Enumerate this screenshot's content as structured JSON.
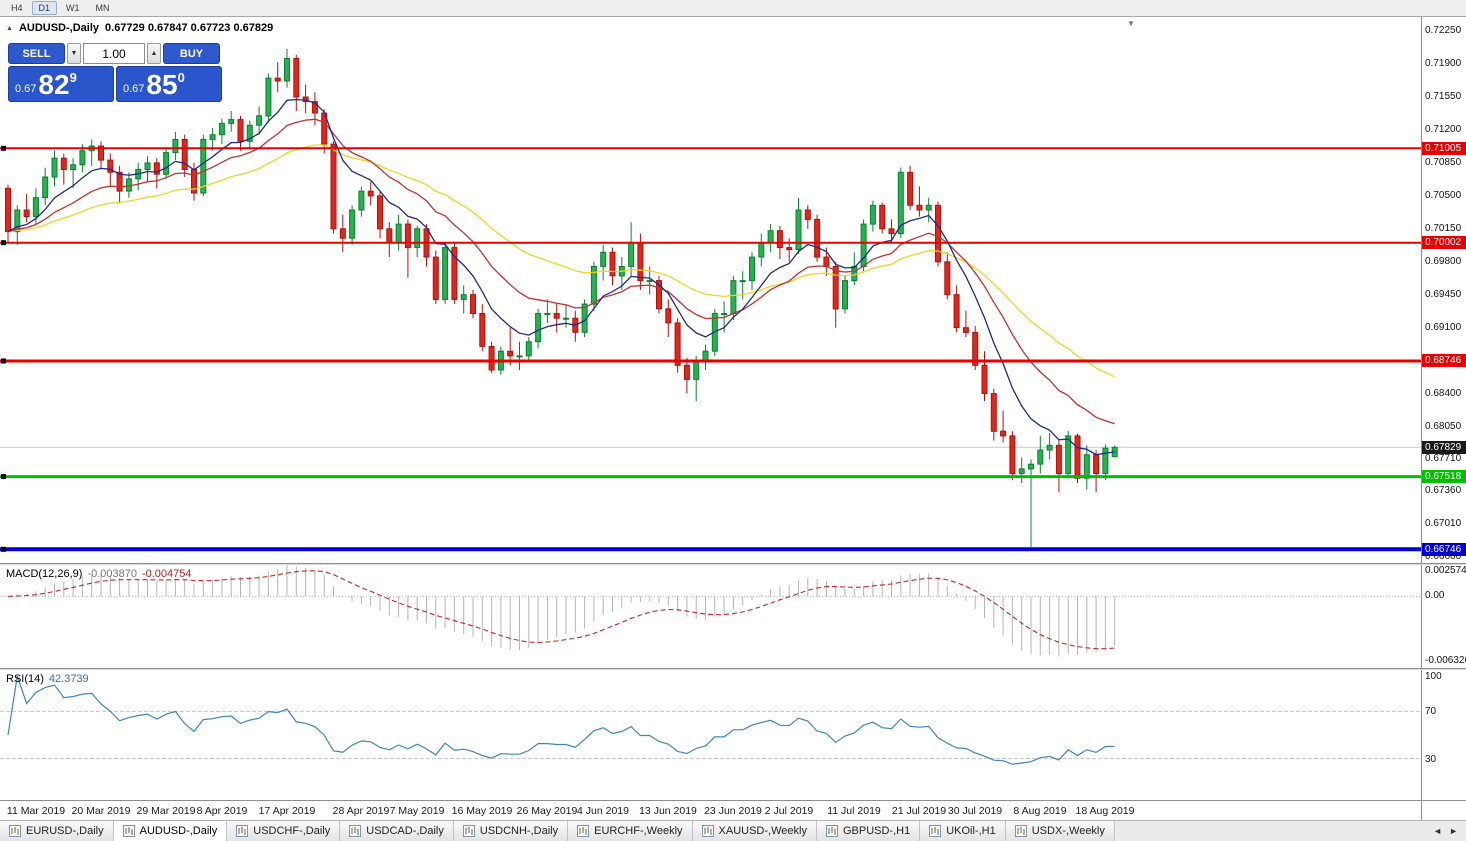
{
  "toolbar": {
    "periods": [
      {
        "label": "H4",
        "active": false
      },
      {
        "label": "D1",
        "active": true
      },
      {
        "label": "W1",
        "active": false
      },
      {
        "label": "MN",
        "active": false
      }
    ]
  },
  "icons": {
    "collapse": "▲",
    "volume_down": "▼",
    "volume_up": "▲",
    "shift_marker": "▼",
    "tab_scroll_left": "◄",
    "tab_scroll_right": "►"
  },
  "chart": {
    "symbol_label": "AUDUSD-,Daily",
    "ohlc": "0.67729 0.67847 0.67723 0.67829",
    "trade_panel": {
      "sell_label": "SELL",
      "buy_label": "BUY",
      "volume": "1.00",
      "sell_price": {
        "base": "0.67",
        "big": "82",
        "pip": "9"
      },
      "buy_price": {
        "base": "0.67",
        "big": "85",
        "pip": "0"
      }
    }
  },
  "chart_data": {
    "type": "candlestick",
    "symbol": "AUDUSD",
    "timeframe": "Daily",
    "title": "AUDUSD-,Daily",
    "current": {
      "open": 0.67729,
      "high": 0.67847,
      "low": 0.67723,
      "close": 0.67829
    },
    "current_price_label": "0.67829",
    "price_range": [
      0.666,
      0.724
    ],
    "y_axis_labels": [
      "0.72250",
      "0.71900",
      "0.71550",
      "0.71200",
      "0.70850",
      "0.70500",
      "0.70150",
      "0.69800",
      "0.69450",
      "0.69100",
      "0.68750",
      "0.68400",
      "0.68050",
      "0.67710",
      "0.67360",
      "0.67010",
      "0.66660"
    ],
    "x_axis_labels": [
      {
        "text": "11 Mar 2019",
        "index": 3
      },
      {
        "text": "20 Mar 2019",
        "index": 10
      },
      {
        "text": "29 Mar 2019",
        "index": 17
      },
      {
        "text": "8 Apr 2019",
        "index": 23
      },
      {
        "text": "17 Apr 2019",
        "index": 30
      },
      {
        "text": "28 Apr 2019",
        "index": 38
      },
      {
        "text": "7 May 2019",
        "index": 44
      },
      {
        "text": "16 May 2019",
        "index": 51
      },
      {
        "text": "26 May 2019",
        "index": 58
      },
      {
        "text": "4 Jun 2019",
        "index": 64
      },
      {
        "text": "13 Jun 2019",
        "index": 71
      },
      {
        "text": "23 Jun 2019",
        "index": 78
      },
      {
        "text": "2 Jul 2019",
        "index": 84
      },
      {
        "text": "11 Jul 2019",
        "index": 91
      },
      {
        "text": "21 Jul 2019",
        "index": 98
      },
      {
        "text": "30 Jul 2019",
        "index": 104
      },
      {
        "text": "8 Aug 2019",
        "index": 111
      },
      {
        "text": "18 Aug 2019",
        "index": 118
      }
    ],
    "hlines": [
      {
        "price": 0.71005,
        "label": "0.71005",
        "color": "#e60000",
        "width": 2,
        "role": "resistance"
      },
      {
        "price": 0.70002,
        "label": "0.70002",
        "color": "#e60000",
        "width": 2,
        "role": "resistance"
      },
      {
        "price": 0.68746,
        "label": "0.68746",
        "color": "#e60000",
        "width": 3,
        "role": "resistance"
      },
      {
        "price": 0.67518,
        "label": "0.67518",
        "color": "#00c000",
        "width": 3,
        "role": "support"
      },
      {
        "price": 0.66746,
        "label": "0.66746",
        "color": "#0000cc",
        "width": 4,
        "role": "support"
      }
    ],
    "colors": {
      "bull": "#27b24f",
      "bull_edge": "#0d7f33",
      "bear": "#e2261d",
      "bear_edge": "#a8140e",
      "current_line": "#c9c9c9",
      "current_tag": "#1a1a1a"
    },
    "moving_averages": [
      {
        "name": "slow",
        "period": 34,
        "color": "#efd429"
      },
      {
        "name": "medium",
        "period": 17,
        "color": "#c23030"
      },
      {
        "name": "fast",
        "period": 8,
        "color": "#1c2a8f"
      }
    ],
    "candles": [
      [
        0.7058,
        0.7062,
        0.7,
        0.7012
      ],
      [
        0.7012,
        0.704,
        0.6998,
        0.7035
      ],
      [
        0.7035,
        0.7052,
        0.7022,
        0.7028
      ],
      [
        0.7028,
        0.7058,
        0.702,
        0.7048
      ],
      [
        0.7048,
        0.708,
        0.704,
        0.707
      ],
      [
        0.707,
        0.7098,
        0.706,
        0.709
      ],
      [
        0.709,
        0.7095,
        0.7062,
        0.7078
      ],
      [
        0.7078,
        0.709,
        0.7058,
        0.7083
      ],
      [
        0.7083,
        0.7105,
        0.7075,
        0.7098
      ],
      [
        0.7098,
        0.711,
        0.7082,
        0.7103
      ],
      [
        0.7103,
        0.7108,
        0.7078,
        0.7088
      ],
      [
        0.7088,
        0.7095,
        0.706,
        0.7075
      ],
      [
        0.7075,
        0.7082,
        0.7042,
        0.7055
      ],
      [
        0.7055,
        0.7075,
        0.7048,
        0.7068
      ],
      [
        0.7068,
        0.7085,
        0.7056,
        0.7078
      ],
      [
        0.7078,
        0.7092,
        0.7065,
        0.7085
      ],
      [
        0.7085,
        0.709,
        0.7058,
        0.7073
      ],
      [
        0.7073,
        0.7102,
        0.7068,
        0.7096
      ],
      [
        0.7096,
        0.7118,
        0.7088,
        0.711
      ],
      [
        0.711,
        0.7115,
        0.707,
        0.7078
      ],
      [
        0.7078,
        0.7085,
        0.7045,
        0.7053
      ],
      [
        0.7053,
        0.7115,
        0.705,
        0.711
      ],
      [
        0.711,
        0.7122,
        0.7098,
        0.7115
      ],
      [
        0.7115,
        0.7132,
        0.7105,
        0.7127
      ],
      [
        0.7127,
        0.714,
        0.7118,
        0.7131
      ],
      [
        0.7131,
        0.7135,
        0.7098,
        0.7108
      ],
      [
        0.7108,
        0.713,
        0.71,
        0.7125
      ],
      [
        0.7125,
        0.7145,
        0.7115,
        0.7135
      ],
      [
        0.7135,
        0.718,
        0.7128,
        0.7175
      ],
      [
        0.7175,
        0.7192,
        0.716,
        0.7172
      ],
      [
        0.7172,
        0.7206,
        0.7165,
        0.7196
      ],
      [
        0.7196,
        0.72,
        0.714,
        0.7155
      ],
      [
        0.7155,
        0.7168,
        0.7138,
        0.715
      ],
      [
        0.715,
        0.716,
        0.7125,
        0.7138
      ],
      [
        0.7138,
        0.7142,
        0.7095,
        0.7105
      ],
      [
        0.7105,
        0.7108,
        0.701,
        0.7015
      ],
      [
        0.7015,
        0.703,
        0.699,
        0.7005
      ],
      [
        0.7005,
        0.704,
        0.6998,
        0.7035
      ],
      [
        0.7035,
        0.706,
        0.7028,
        0.7055
      ],
      [
        0.7055,
        0.7065,
        0.704,
        0.705
      ],
      [
        0.705,
        0.7055,
        0.7005,
        0.7015
      ],
      [
        0.7015,
        0.7022,
        0.6985,
        0.7
      ],
      [
        0.7,
        0.703,
        0.6992,
        0.702
      ],
      [
        0.702,
        0.7025,
        0.6963,
        0.6995
      ],
      [
        0.6995,
        0.7018,
        0.6985,
        0.7015
      ],
      [
        0.7015,
        0.702,
        0.6975,
        0.6985
      ],
      [
        0.6985,
        0.6992,
        0.6935,
        0.694
      ],
      [
        0.694,
        0.7,
        0.6935,
        0.6995
      ],
      [
        0.6995,
        0.7,
        0.6935,
        0.694
      ],
      [
        0.694,
        0.6955,
        0.6925,
        0.6945
      ],
      [
        0.6945,
        0.695,
        0.692,
        0.6925
      ],
      [
        0.6925,
        0.6935,
        0.6885,
        0.689
      ],
      [
        0.689,
        0.6895,
        0.6862,
        0.6865
      ],
      [
        0.6865,
        0.689,
        0.686,
        0.6885
      ],
      [
        0.6885,
        0.691,
        0.687,
        0.688
      ],
      [
        0.688,
        0.6895,
        0.6865,
        0.688
      ],
      [
        0.688,
        0.69,
        0.6875,
        0.6895
      ],
      [
        0.6895,
        0.693,
        0.6888,
        0.6925
      ],
      [
        0.6925,
        0.694,
        0.6915,
        0.6925
      ],
      [
        0.6925,
        0.6935,
        0.6905,
        0.692
      ],
      [
        0.692,
        0.6935,
        0.691,
        0.692
      ],
      [
        0.692,
        0.6928,
        0.6895,
        0.6905
      ],
      [
        0.6905,
        0.694,
        0.69,
        0.6935
      ],
      [
        0.6935,
        0.698,
        0.6928,
        0.6975
      ],
      [
        0.6975,
        0.6998,
        0.696,
        0.699
      ],
      [
        0.699,
        0.6995,
        0.6955,
        0.6965
      ],
      [
        0.6965,
        0.6985,
        0.695,
        0.6975
      ],
      [
        0.6975,
        0.7022,
        0.6965,
        0.7
      ],
      [
        0.7,
        0.701,
        0.695,
        0.696
      ],
      [
        0.696,
        0.6975,
        0.6945,
        0.696
      ],
      [
        0.696,
        0.6965,
        0.6925,
        0.693
      ],
      [
        0.693,
        0.694,
        0.69,
        0.6915
      ],
      [
        0.6915,
        0.692,
        0.6862,
        0.687
      ],
      [
        0.687,
        0.6878,
        0.684,
        0.6855
      ],
      [
        0.6855,
        0.688,
        0.6832,
        0.6875
      ],
      [
        0.6875,
        0.6892,
        0.6865,
        0.6885
      ],
      [
        0.6885,
        0.693,
        0.688,
        0.6925
      ],
      [
        0.6925,
        0.6938,
        0.6905,
        0.6925
      ],
      [
        0.6925,
        0.6965,
        0.6918,
        0.696
      ],
      [
        0.696,
        0.697,
        0.694,
        0.696
      ],
      [
        0.696,
        0.699,
        0.695,
        0.6985
      ],
      [
        0.6985,
        0.701,
        0.6975,
        0.7
      ],
      [
        0.7,
        0.702,
        0.699,
        0.7013
      ],
      [
        0.7013,
        0.7018,
        0.6983,
        0.6995
      ],
      [
        0.6995,
        0.7005,
        0.698,
        0.6993
      ],
      [
        0.6993,
        0.7048,
        0.6988,
        0.7035
      ],
      [
        0.7035,
        0.704,
        0.7015,
        0.7025
      ],
      [
        0.7025,
        0.703,
        0.698,
        0.6985
      ],
      [
        0.6985,
        0.6995,
        0.6965,
        0.6975
      ],
      [
        0.6975,
        0.698,
        0.691,
        0.693
      ],
      [
        0.693,
        0.6965,
        0.6925,
        0.696
      ],
      [
        0.696,
        0.699,
        0.6955,
        0.6975
      ],
      [
        0.6975,
        0.7025,
        0.697,
        0.702
      ],
      [
        0.702,
        0.7045,
        0.7012,
        0.704
      ],
      [
        0.704,
        0.7043,
        0.701,
        0.7015
      ],
      [
        0.7015,
        0.7025,
        0.7,
        0.701
      ],
      [
        0.701,
        0.708,
        0.7005,
        0.7075
      ],
      [
        0.7075,
        0.7082,
        0.7035,
        0.704
      ],
      [
        0.704,
        0.706,
        0.7028,
        0.7035
      ],
      [
        0.7035,
        0.7048,
        0.7022,
        0.704
      ],
      [
        0.704,
        0.7044,
        0.6975,
        0.698
      ],
      [
        0.698,
        0.699,
        0.694,
        0.6945
      ],
      [
        0.6945,
        0.6955,
        0.6905,
        0.691
      ],
      [
        0.691,
        0.6928,
        0.69,
        0.6905
      ],
      [
        0.6905,
        0.6912,
        0.6865,
        0.687
      ],
      [
        0.687,
        0.6885,
        0.6832,
        0.684
      ],
      [
        0.684,
        0.6845,
        0.679,
        0.68
      ],
      [
        0.68,
        0.6822,
        0.6788,
        0.6795
      ],
      [
        0.6795,
        0.68,
        0.6748,
        0.6755
      ],
      [
        0.6755,
        0.6772,
        0.6745,
        0.676
      ],
      [
        0.676,
        0.677,
        0.6677,
        0.6765
      ],
      [
        0.6765,
        0.6795,
        0.6755,
        0.678
      ],
      [
        0.678,
        0.6798,
        0.677,
        0.6785
      ],
      [
        0.6785,
        0.679,
        0.6735,
        0.6755
      ],
      [
        0.6755,
        0.68,
        0.675,
        0.6795
      ],
      [
        0.6795,
        0.6797,
        0.6745,
        0.675
      ],
      [
        0.675,
        0.6785,
        0.6738,
        0.6775
      ],
      [
        0.6775,
        0.678,
        0.6735,
        0.6755
      ],
      [
        0.6755,
        0.6786,
        0.6748,
        0.6782
      ],
      [
        0.67729,
        0.67847,
        0.67723,
        0.67829
      ]
    ]
  },
  "macd": {
    "name": "MACD(12,26,9)",
    "main_value": "-0.003870",
    "signal_value": "-0.004754",
    "params": {
      "fast": 12,
      "slow": 26,
      "signal": 9
    },
    "axis_labels": [
      {
        "text": "0.002574",
        "value": 0.002574
      },
      {
        "text": "0.00",
        "value": 0
      },
      {
        "text": "-0.006326",
        "value": -0.006326
      }
    ],
    "scale_max": 0.00308,
    "scale_min": -0.00703,
    "histogram_color": "#b4b4b4",
    "signal_color": "#cc2424"
  },
  "rsi": {
    "name": "RSI(14)",
    "value": "42.3739",
    "period": 14,
    "levels": [
      70,
      30
    ],
    "axis_labels": [
      "100",
      "70",
      "30"
    ],
    "line_color": "#3d85c8"
  },
  "tabs": {
    "items": [
      {
        "label": "EURUSD-,Daily",
        "active": false
      },
      {
        "label": "AUDUSD-,Daily",
        "active": true
      },
      {
        "label": "USDCHF-,Daily",
        "active": false
      },
      {
        "label": "USDCAD-,Daily",
        "active": false
      },
      {
        "label": "USDCNH-,Daily",
        "active": false
      },
      {
        "label": "EURCHF-,Weekly",
        "active": false
      },
      {
        "label": "XAUUSD-,Weekly",
        "active": false
      },
      {
        "label": "GBPUSD-,H1",
        "active": false
      },
      {
        "label": "UKOil-,H1",
        "active": false
      },
      {
        "label": "USDX-,Weekly",
        "active": false
      }
    ]
  }
}
